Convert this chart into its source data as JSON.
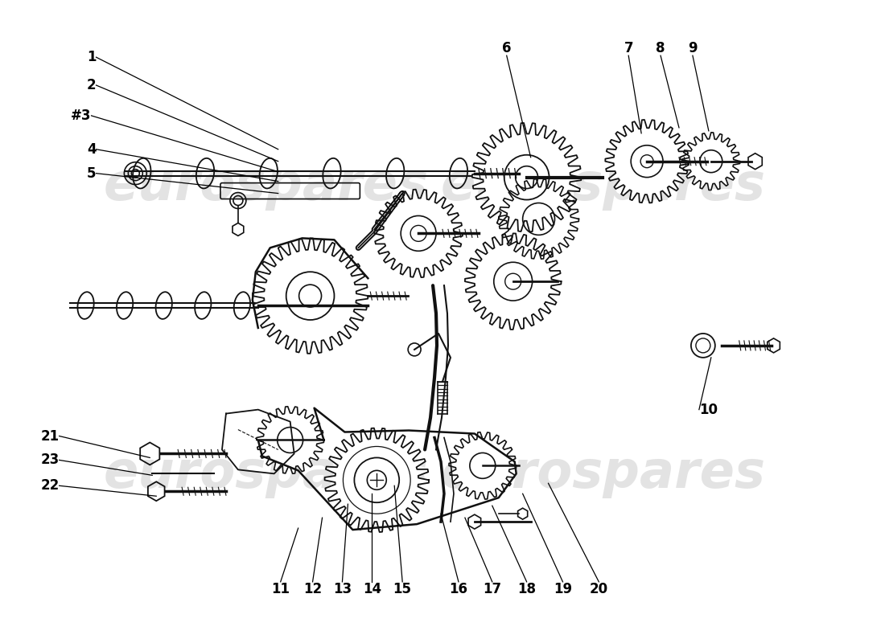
{
  "background_color": "#ffffff",
  "watermark_color": "#cccccc",
  "label_fontsize": 12,
  "label_fontweight": "bold",
  "line_color": "#111111",
  "callouts_1_5": [
    [
      "1",
      118,
      70,
      345,
      185
    ],
    [
      "2",
      118,
      105,
      345,
      200
    ],
    [
      "#3",
      112,
      143,
      345,
      213
    ],
    [
      "4",
      118,
      185,
      345,
      225
    ],
    [
      "5",
      118,
      215,
      345,
      240
    ]
  ],
  "callouts_top_right": [
    [
      "6",
      630,
      68,
      660,
      195
    ],
    [
      "7",
      782,
      68,
      798,
      165
    ],
    [
      "8",
      822,
      68,
      845,
      158
    ],
    [
      "9",
      862,
      68,
      882,
      162
    ]
  ],
  "callout_10": [
    "10",
    870,
    510,
    885,
    445
  ],
  "callouts_left": [
    [
      "21",
      72,
      543,
      185,
      570
    ],
    [
      "23",
      72,
      573,
      188,
      592
    ],
    [
      "22",
      72,
      605,
      193,
      618
    ]
  ],
  "callouts_bottom": [
    [
      "11",
      348,
      725,
      370,
      658
    ],
    [
      "12",
      388,
      725,
      400,
      645
    ],
    [
      "13",
      425,
      725,
      432,
      628
    ],
    [
      "14",
      462,
      725,
      462,
      615
    ],
    [
      "15",
      500,
      725,
      490,
      605
    ],
    [
      "16",
      570,
      725,
      548,
      640
    ],
    [
      "17",
      612,
      725,
      578,
      645
    ],
    [
      "18",
      655,
      725,
      612,
      630
    ],
    [
      "19",
      700,
      725,
      650,
      615
    ],
    [
      "20",
      745,
      725,
      682,
      602
    ]
  ]
}
